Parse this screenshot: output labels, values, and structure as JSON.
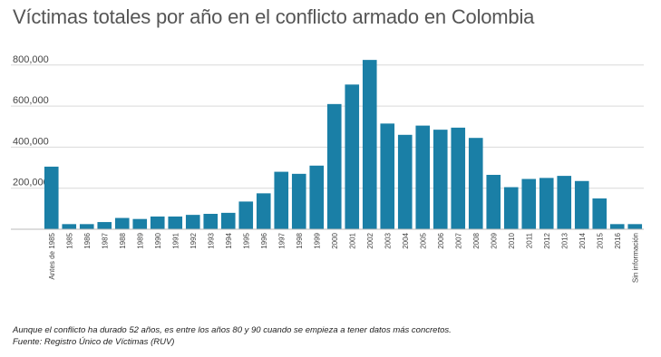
{
  "chart_data": {
    "type": "bar",
    "title": "Víctimas totales por año en el conflicto armado en Colombia",
    "xlabel": "",
    "ylabel": "",
    "ylim": [
      0,
      830000
    ],
    "yticks": [
      200000,
      400000,
      600000,
      800000
    ],
    "ytick_labels": [
      "200,000",
      "400,000",
      "600,000",
      "800,000"
    ],
    "grid": true,
    "color": "#1a7fa6",
    "categories": [
      "Antes de 1985",
      "1985",
      "1986",
      "1987",
      "1988",
      "1989",
      "1990",
      "1991",
      "1992",
      "1993",
      "1994",
      "1995",
      "1996",
      "1997",
      "1998",
      "1999",
      "2000",
      "2001",
      "2002",
      "2003",
      "2004",
      "2005",
      "2006",
      "2007",
      "2008",
      "2009",
      "2010",
      "2011",
      "2012",
      "2013",
      "2014",
      "2015",
      "2016",
      "Sin información"
    ],
    "values": [
      305000,
      25000,
      25000,
      35000,
      55000,
      50000,
      62000,
      62000,
      70000,
      75000,
      80000,
      135000,
      175000,
      280000,
      270000,
      310000,
      610000,
      705000,
      825000,
      515000,
      460000,
      505000,
      485000,
      495000,
      445000,
      265000,
      205000,
      245000,
      250000,
      260000,
      235000,
      150000,
      25000,
      25000
    ]
  },
  "footer": {
    "note": "Aunque el conflicto ha durado 52 años, es entre los años 80 y 90 cuando se empieza a tener datos más concretos.",
    "source": "Fuente: Registro Único de Víctimas (RUV)"
  }
}
